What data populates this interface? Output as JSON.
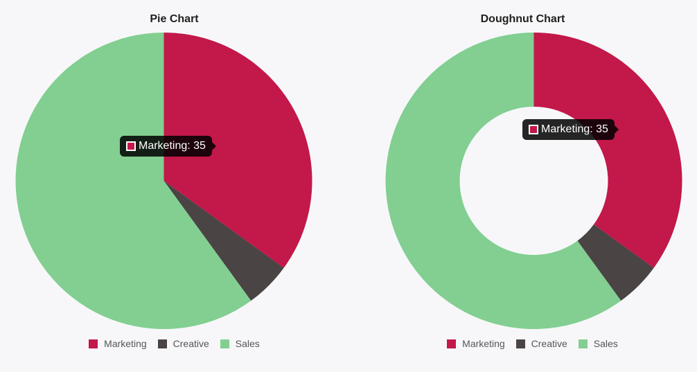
{
  "chart_data": [
    {
      "type": "pie",
      "title": "Pie Chart",
      "categories": [
        "Marketing",
        "Creative",
        "Sales"
      ],
      "values": [
        35,
        5,
        60
      ],
      "colors": [
        "#c2184a",
        "#4a4444",
        "#82cf91"
      ],
      "legend": "bottom",
      "tooltip": "Marketing: 35"
    },
    {
      "type": "doughnut",
      "title": "Doughnut Chart",
      "categories": [
        "Marketing",
        "Creative",
        "Sales"
      ],
      "values": [
        35,
        5,
        60
      ],
      "colors": [
        "#c2184a",
        "#4a4444",
        "#82cf91"
      ],
      "legend": "bottom",
      "tooltip": "Marketing: 35"
    }
  ]
}
